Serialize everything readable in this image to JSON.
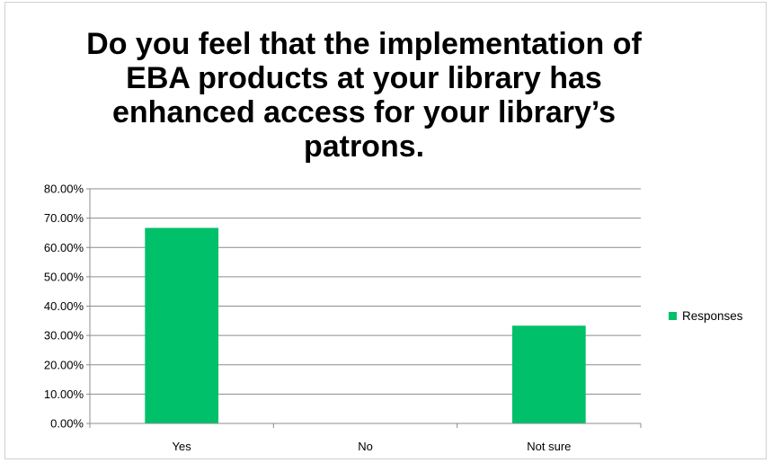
{
  "chart_data": {
    "type": "bar",
    "title": "Do you feel that the implementation of EBA products at your library has enhanced access for your library’s patrons.",
    "categories": [
      "Yes",
      "No",
      "Not sure"
    ],
    "series": [
      {
        "name": "Responses",
        "values": [
          0.6667,
          0,
          0.3333
        ],
        "color": "#00c06a"
      }
    ],
    "y_ticks": [
      "0.00%",
      "10.00%",
      "20.00%",
      "30.00%",
      "40.00%",
      "50.00%",
      "60.00%",
      "70.00%",
      "80.00%"
    ],
    "ylim": [
      0,
      0.8
    ],
    "grid": true,
    "legend": "right"
  }
}
